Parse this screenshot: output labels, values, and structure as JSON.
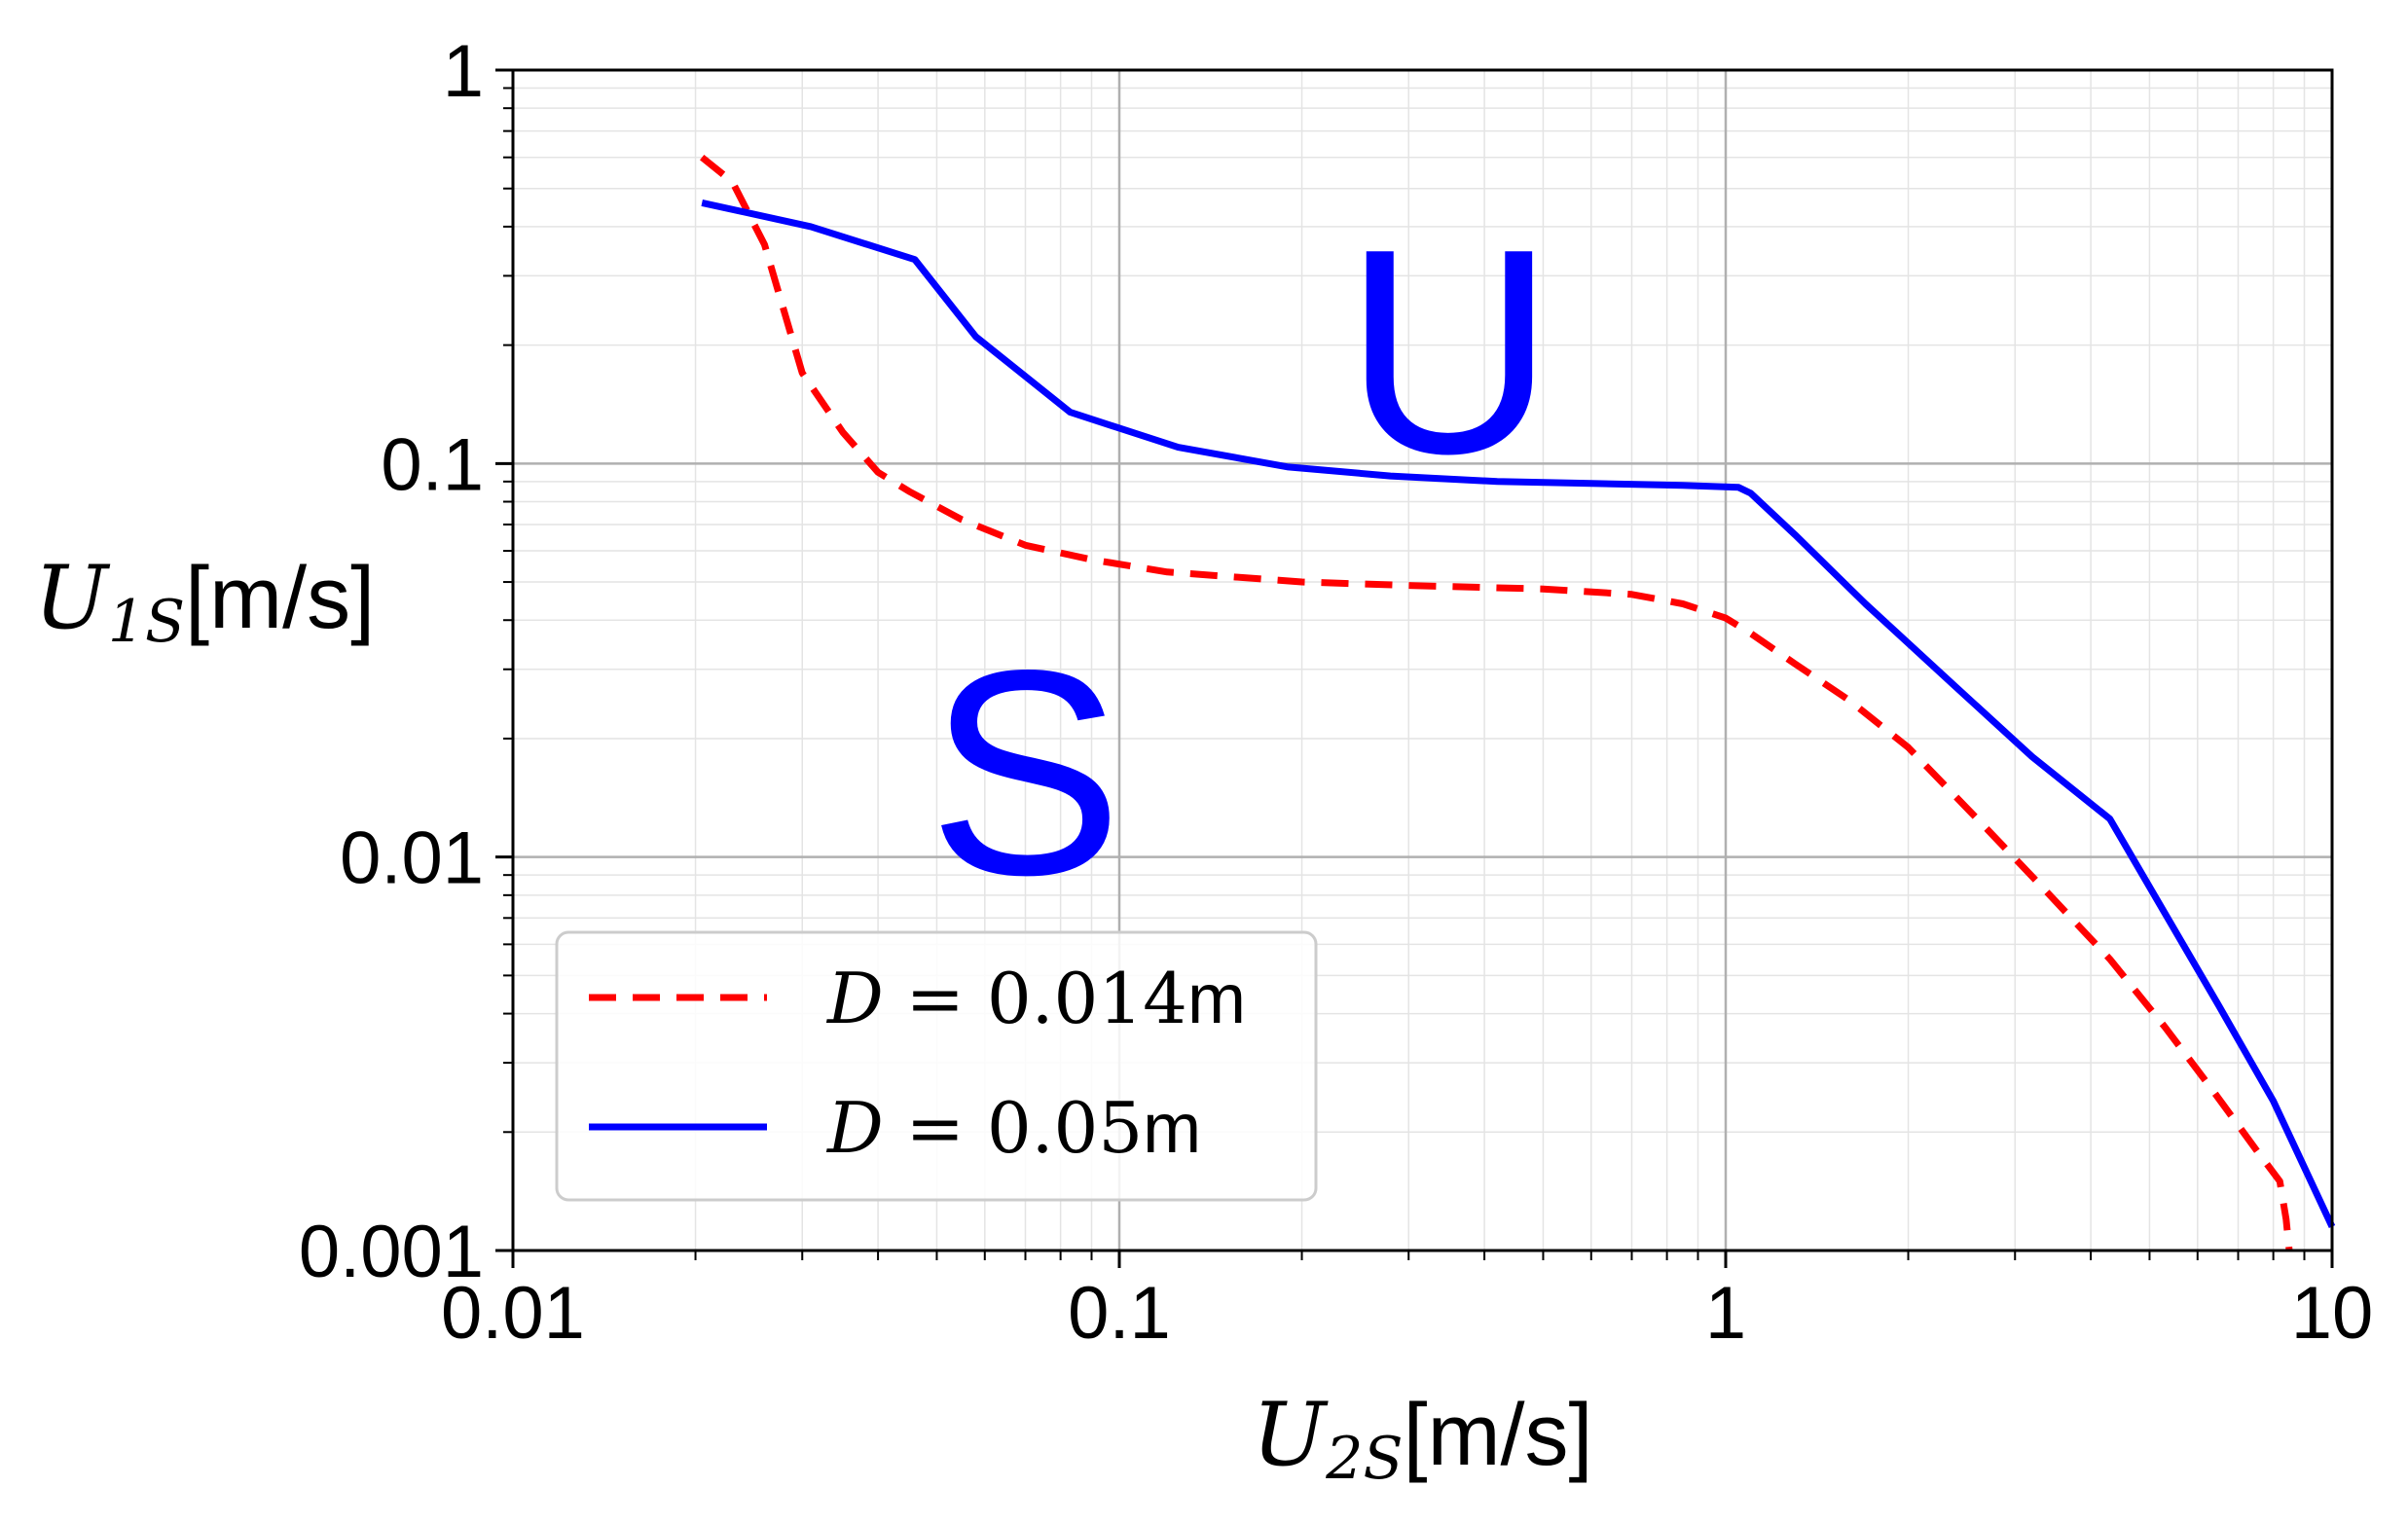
{
  "chart_data": {
    "type": "line",
    "xscale": "log",
    "yscale": "log",
    "xlim": [
      0.01,
      10
    ],
    "ylim": [
      0.001,
      1
    ],
    "xticks": [
      "0.01",
      "0.1",
      "1",
      "10"
    ],
    "yticks": [
      "0.001",
      "0.01",
      "0.1",
      "1"
    ],
    "xlabel": {
      "var": "U",
      "sub": "2S",
      "unit": "[m/s]"
    },
    "ylabel": {
      "var": "U",
      "sub": "1S",
      "unit": "[m/s]"
    },
    "grid": true,
    "legend_position": "lower-left",
    "annotations": [
      {
        "text": "U",
        "x": 0.35,
        "y": 0.2
      },
      {
        "text": "S",
        "x": 0.07,
        "y": 0.017
      }
    ],
    "series": [
      {
        "name": "D = 0.014m",
        "legend": {
          "lhs": "D",
          "eq": " = ",
          "num": "0.014",
          "unit": "m"
        },
        "color": "#ff0000",
        "style": "dashed",
        "x": [
          0.0205,
          0.023,
          0.026,
          0.03,
          0.035,
          0.04,
          0.045,
          0.055,
          0.07,
          0.09,
          0.12,
          0.2,
          0.3,
          0.5,
          0.7,
          0.85,
          1.0,
          1.1,
          1.3,
          1.6,
          2.0,
          2.6,
          3.3,
          4.3,
          5.3,
          6.3,
          7.5,
          8.2,
          8.4,
          8.5
        ],
        "y": [
          0.6,
          0.52,
          0.36,
          0.17,
          0.12,
          0.095,
          0.085,
          0.072,
          0.062,
          0.057,
          0.053,
          0.05,
          0.049,
          0.048,
          0.0465,
          0.044,
          0.0405,
          0.037,
          0.031,
          0.025,
          0.019,
          0.0125,
          0.0085,
          0.0055,
          0.0037,
          0.0026,
          0.0018,
          0.0015,
          0.0012,
          0.001
        ]
      },
      {
        "name": "D = 0.05m",
        "legend": {
          "lhs": "D",
          "eq": " = ",
          "num": "0.05",
          "unit": "m"
        },
        "color": "#0000ff",
        "style": "solid",
        "x": [
          0.0205,
          0.031,
          0.046,
          0.058,
          0.083,
          0.125,
          0.19,
          0.28,
          0.42,
          0.6,
          0.85,
          1.05,
          1.1,
          1.3,
          1.7,
          2.4,
          3.2,
          4.3,
          5.3,
          6.5,
          8.0,
          10.0
        ],
        "y": [
          0.46,
          0.4,
          0.33,
          0.21,
          0.135,
          0.11,
          0.098,
          0.093,
          0.09,
          0.089,
          0.088,
          0.087,
          0.084,
          0.066,
          0.044,
          0.027,
          0.018,
          0.0125,
          0.0072,
          0.0042,
          0.0024,
          0.00115
        ]
      }
    ]
  }
}
